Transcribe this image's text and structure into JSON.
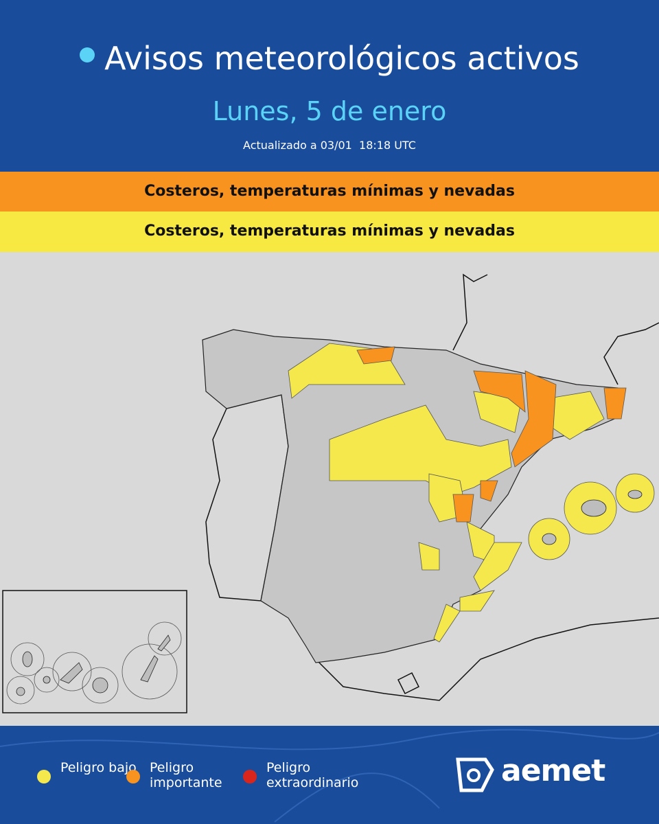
{
  "header": {
    "title": "Avisos meteorológicos activos",
    "subtitle": "Lunes, 5 de enero",
    "updated": "Actualizado a 03/01  18:18 UTC"
  },
  "bands": [
    {
      "text": "Costeros, temperaturas mínimas y nevadas",
      "color": "#f7931e"
    },
    {
      "text": "Costeros, temperaturas mínimas y nevadas",
      "color": "#f8e942"
    }
  ],
  "legend": [
    {
      "label": "Peligro bajo",
      "color": "#f4e84d"
    },
    {
      "label": "Peligro importante",
      "color": "#f7931e"
    },
    {
      "label": "Peligro extraordinario",
      "color": "#d9261c"
    }
  ],
  "logo": "aemet"
}
